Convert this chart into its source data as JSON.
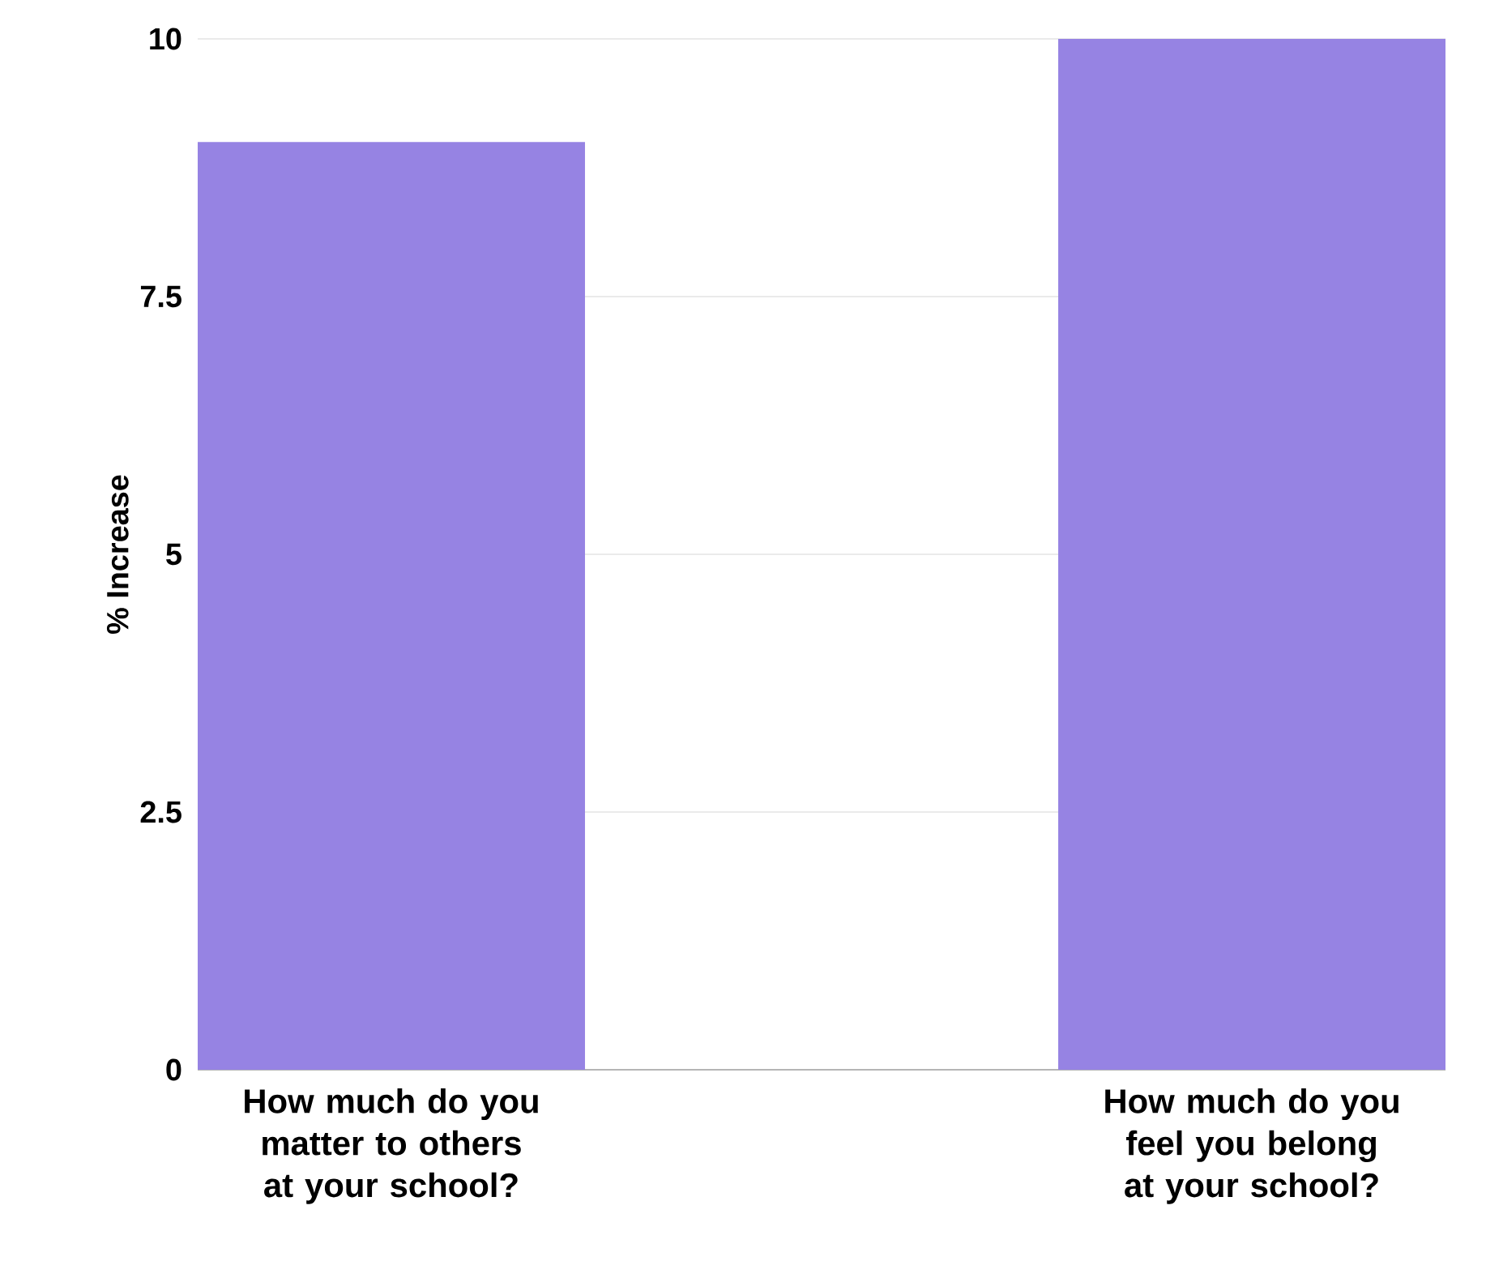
{
  "chart_data": {
    "type": "bar",
    "ylabel": "% Increase",
    "categories": [
      "How much do you matter to others at your school?",
      "How much do you feel you belong at your school?"
    ],
    "values": [
      9,
      10
    ],
    "color": "#9683e3",
    "ylim": [
      0,
      10
    ],
    "yticks": [
      0,
      2.5,
      5,
      7.5,
      10
    ],
    "grid": "y"
  }
}
